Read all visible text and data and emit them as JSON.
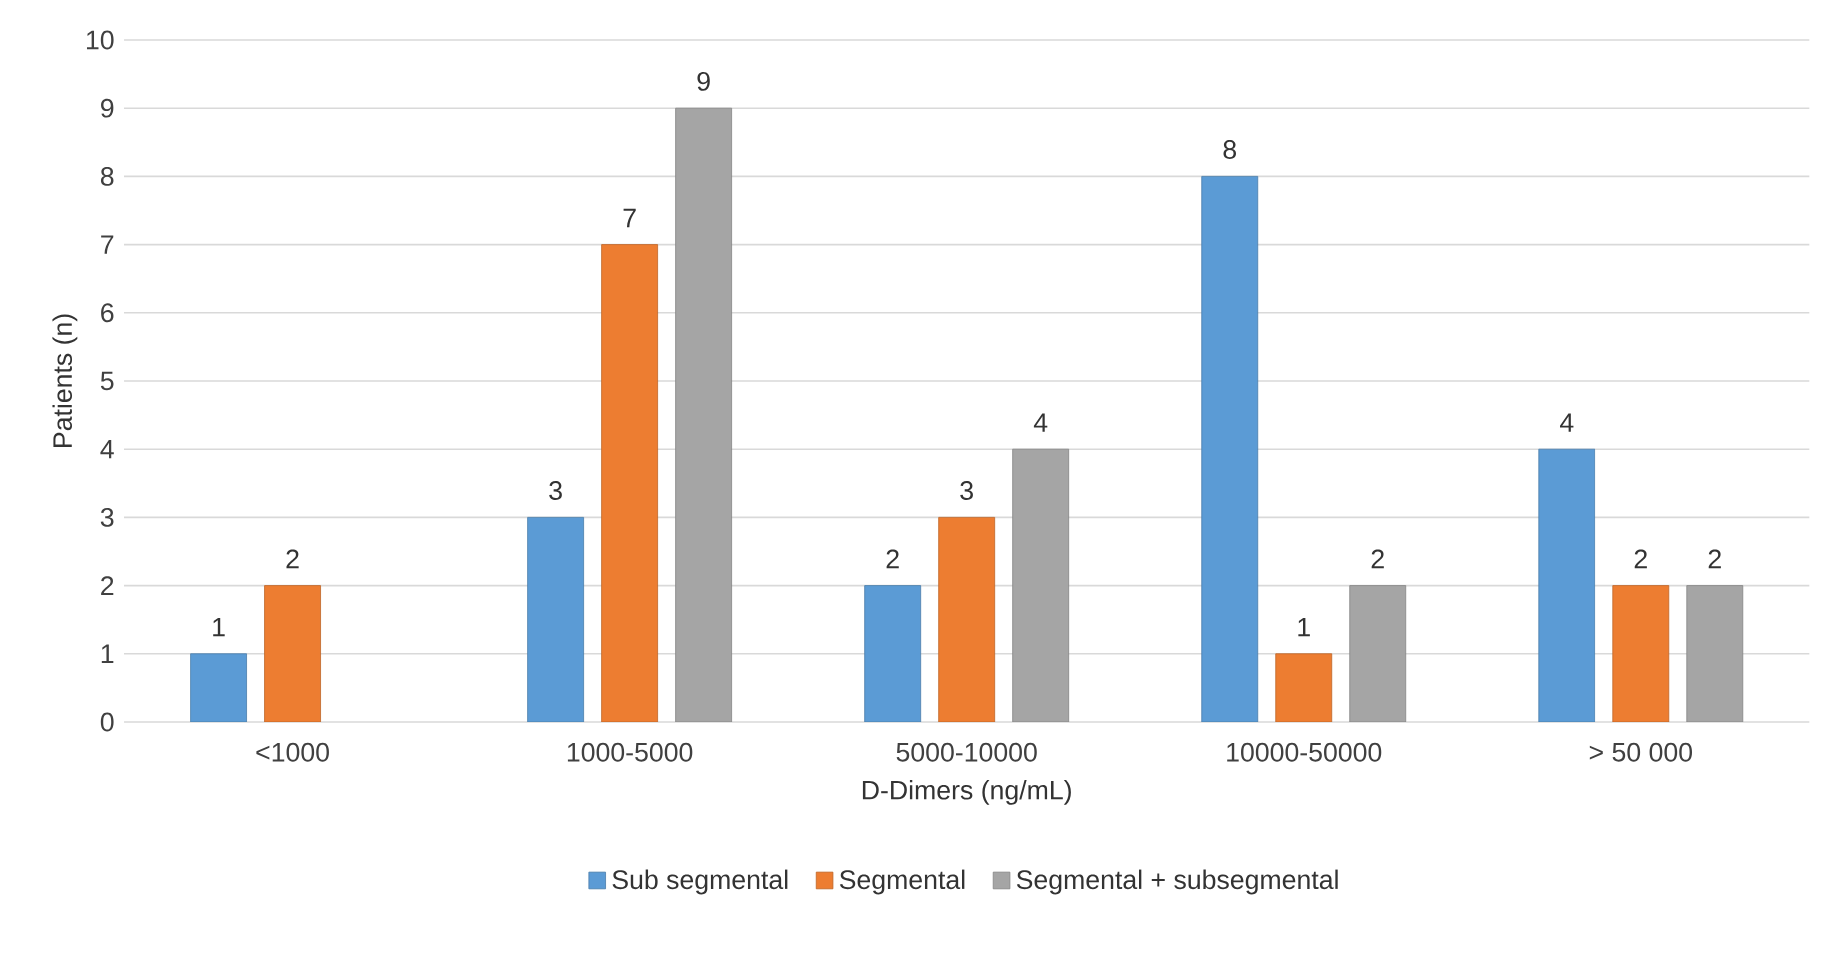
{
  "chart_data": {
    "type": "bar",
    "xlabel": "D-Dimers (ng/mL)",
    "ylabel": "Patients (n)",
    "categories": [
      "<1000",
      "1000-5000",
      "5000-10000",
      "10000-50000",
      "> 50 000"
    ],
    "series": [
      {
        "name": "Sub segmental",
        "color": "#5b9bd5",
        "values": [
          1,
          3,
          2,
          8,
          4
        ]
      },
      {
        "name": "Segmental",
        "color": "#ed7d31",
        "values": [
          2,
          7,
          3,
          1,
          2
        ]
      },
      {
        "name": "Segmental + subsegmental",
        "color": "#a5a5a5",
        "values": [
          null,
          9,
          4,
          2,
          2
        ]
      }
    ],
    "ylim": [
      0,
      10
    ],
    "yticks": [
      0,
      1,
      2,
      3,
      4,
      5,
      6,
      7,
      8,
      9,
      10
    ],
    "grid": "y",
    "legend": "bottom",
    "data_labels": true
  }
}
